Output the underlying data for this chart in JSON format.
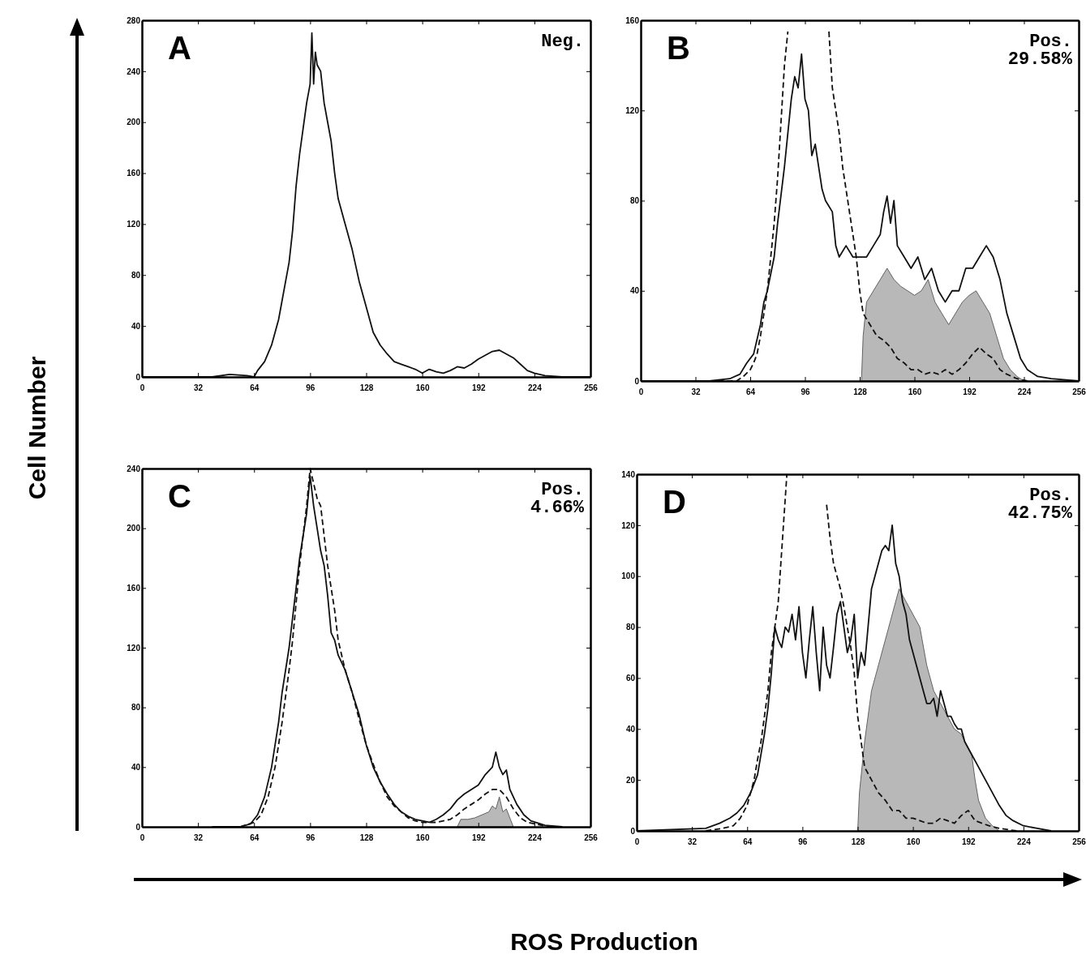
{
  "chart_data": [
    {
      "type": "line",
      "title": "A",
      "ylabel": "Cell Number",
      "annotations": [
        "Neg."
      ],
      "xlim": [
        0,
        256
      ],
      "xticks": [
        0,
        32,
        64,
        96,
        128,
        160,
        192,
        224,
        256
      ],
      "ylim": [
        0,
        280
      ],
      "yticks": [
        0,
        40,
        80,
        120,
        160,
        200,
        240,
        280
      ],
      "series": [
        {
          "color": "#111111",
          "line_style": "solid",
          "x": [
            0,
            40,
            50,
            60,
            64,
            66,
            70,
            74,
            76,
            78,
            80,
            82,
            84,
            86,
            88,
            90,
            92,
            94,
            96,
            97,
            98,
            99,
            100,
            102,
            104,
            106,
            108,
            110,
            112,
            116,
            120,
            124,
            128,
            132,
            136,
            140,
            144,
            148,
            152,
            156,
            160,
            164,
            168,
            172,
            176,
            180,
            184,
            188,
            192,
            196,
            200,
            204,
            208,
            212,
            216,
            220,
            224,
            230,
            240,
            256
          ],
          "values": [
            0,
            0,
            2,
            1,
            0,
            5,
            12,
            25,
            35,
            45,
            60,
            75,
            90,
            115,
            150,
            175,
            195,
            215,
            230,
            270,
            230,
            255,
            245,
            240,
            215,
            200,
            185,
            160,
            140,
            120,
            100,
            75,
            55,
            35,
            25,
            18,
            12,
            10,
            8,
            6,
            3,
            6,
            4,
            3,
            5,
            8,
            7,
            10,
            14,
            17,
            20,
            21,
            18,
            15,
            10,
            5,
            3,
            1,
            0,
            0
          ]
        }
      ]
    },
    {
      "type": "line",
      "title": "B",
      "annotations": [
        "Pos.",
        "29.58%"
      ],
      "xlim": [
        0,
        256
      ],
      "xticks": [
        0,
        32,
        64,
        96,
        128,
        160,
        192,
        224,
        256
      ],
      "ylim": [
        0,
        160
      ],
      "yticks": [
        0,
        40,
        80,
        120,
        160
      ],
      "series": [
        {
          "color": "#111111",
          "line_style": "solid",
          "x": [
            0,
            40,
            52,
            58,
            62,
            66,
            70,
            72,
            74,
            78,
            80,
            84,
            86,
            88,
            90,
            92,
            94,
            96,
            98,
            100,
            102,
            104,
            106,
            108,
            112,
            114,
            116,
            120,
            124,
            128,
            132,
            136,
            140,
            142,
            144,
            146,
            148,
            150,
            154,
            158,
            162,
            166,
            170,
            174,
            178,
            182,
            186,
            190,
            194,
            198,
            202,
            206,
            210,
            214,
            218,
            222,
            226,
            232,
            240,
            256
          ],
          "values": [
            0,
            0,
            1,
            3,
            8,
            12,
            25,
            35,
            40,
            55,
            70,
            95,
            110,
            125,
            135,
            130,
            145,
            125,
            120,
            100,
            105,
            95,
            85,
            80,
            75,
            60,
            55,
            60,
            55,
            55,
            55,
            60,
            65,
            75,
            82,
            70,
            80,
            60,
            55,
            50,
            55,
            45,
            50,
            40,
            35,
            40,
            40,
            50,
            50,
            55,
            60,
            55,
            45,
            30,
            20,
            10,
            5,
            2,
            1,
            0
          ]
        },
        {
          "color": "#111111",
          "line_style": "dashed",
          "x": [
            40,
            56,
            60,
            64,
            66,
            68,
            70,
            72,
            74,
            76,
            78,
            80,
            82,
            84,
            86,
            88,
            108,
            110,
            112,
            116,
            118,
            120,
            122,
            124,
            126,
            128,
            130,
            134,
            138,
            142,
            146,
            150,
            154,
            158,
            162,
            166,
            170,
            174,
            178,
            182,
            186,
            190,
            194,
            198,
            202,
            206,
            210,
            214,
            220,
            226
          ],
          "values": [
            0,
            0,
            2,
            5,
            8,
            12,
            20,
            30,
            40,
            55,
            70,
            90,
            115,
            140,
            155,
            null,
            null,
            155,
            130,
            110,
            95,
            85,
            75,
            65,
            55,
            40,
            30,
            25,
            20,
            18,
            15,
            10,
            8,
            5,
            5,
            3,
            4,
            3,
            5,
            3,
            5,
            8,
            12,
            15,
            12,
            10,
            5,
            3,
            1,
            0
          ]
        },
        {
          "type": "area",
          "color": "#b8b8b8",
          "x": [
            129,
            130,
            132,
            136,
            140,
            144,
            148,
            152,
            156,
            160,
            164,
            168,
            172,
            176,
            180,
            184,
            188,
            192,
            196,
            200,
            204,
            208,
            212,
            216,
            220,
            224
          ],
          "values": [
            0,
            20,
            35,
            40,
            45,
            50,
            45,
            42,
            40,
            38,
            40,
            45,
            35,
            30,
            25,
            30,
            35,
            38,
            40,
            35,
            30,
            20,
            10,
            5,
            2,
            0
          ]
        }
      ]
    },
    {
      "type": "line",
      "title": "C",
      "xlabel": "ROS Production",
      "annotations": [
        "Pos.",
        "4.66%"
      ],
      "xlim": [
        0,
        256
      ],
      "xticks": [
        0,
        32,
        64,
        96,
        128,
        160,
        192,
        224,
        256
      ],
      "ylim": [
        0,
        240
      ],
      "yticks": [
        0,
        40,
        80,
        120,
        160,
        200,
        240
      ],
      "series": [
        {
          "color": "#111111",
          "line_style": "solid",
          "x": [
            40,
            56,
            62,
            66,
            70,
            74,
            78,
            80,
            84,
            86,
            88,
            90,
            92,
            94,
            96,
            98,
            100,
            102,
            104,
            106,
            108,
            110,
            112,
            116,
            120,
            124,
            128,
            132,
            136,
            140,
            144,
            148,
            152,
            156,
            160,
            164,
            168,
            172,
            176,
            180,
            184,
            188,
            192,
            196,
            200,
            202,
            204,
            206,
            208,
            210,
            214,
            218,
            222,
            230,
            240
          ],
          "values": [
            0,
            0,
            2,
            8,
            20,
            40,
            70,
            90,
            120,
            140,
            160,
            180,
            195,
            210,
            235,
            215,
            200,
            185,
            175,
            155,
            130,
            125,
            115,
            105,
            90,
            75,
            55,
            40,
            30,
            22,
            15,
            10,
            7,
            5,
            4,
            3,
            5,
            8,
            12,
            18,
            22,
            25,
            28,
            35,
            40,
            50,
            40,
            35,
            38,
            25,
            15,
            8,
            4,
            1,
            0
          ]
        },
        {
          "color": "#111111",
          "line_style": "dashed",
          "x": [
            56,
            64,
            68,
            72,
            76,
            80,
            84,
            86,
            88,
            90,
            92,
            94,
            96,
            98,
            100,
            102,
            104,
            106,
            108,
            110,
            112,
            116,
            120,
            124,
            128,
            132,
            136,
            140,
            144,
            148,
            152,
            156,
            160,
            168,
            176,
            180,
            184,
            188,
            192,
            196,
            200,
            204,
            208,
            212,
            216,
            220,
            228,
            236
          ],
          "values": [
            0,
            3,
            8,
            20,
            40,
            70,
            105,
            125,
            150,
            175,
            195,
            215,
            240,
            230,
            220,
            215,
            195,
            175,
            160,
            145,
            125,
            105,
            90,
            72,
            55,
            42,
            30,
            20,
            14,
            10,
            6,
            4,
            3,
            3,
            5,
            8,
            12,
            15,
            18,
            22,
            25,
            25,
            20,
            12,
            6,
            3,
            1,
            0
          ]
        },
        {
          "type": "area",
          "color": "#b8b8b8",
          "x": [
            180,
            182,
            186,
            190,
            194,
            198,
            200,
            202,
            204,
            206,
            208,
            210,
            212
          ],
          "values": [
            0,
            5,
            5,
            6,
            8,
            10,
            14,
            12,
            20,
            10,
            12,
            6,
            0
          ]
        }
      ]
    },
    {
      "type": "line",
      "title": "D",
      "annotations": [
        "Pos.",
        "42.75%"
      ],
      "xlim": [
        0,
        256
      ],
      "xticks": [
        0,
        32,
        64,
        96,
        128,
        160,
        192,
        224,
        256
      ],
      "ylim": [
        0,
        140
      ],
      "yticks": [
        0,
        20,
        40,
        60,
        80,
        100,
        120,
        140
      ],
      "series": [
        {
          "color": "#111111",
          "line_style": "solid",
          "x": [
            0,
            40,
            48,
            54,
            58,
            62,
            66,
            70,
            72,
            74,
            76,
            78,
            80,
            82,
            84,
            86,
            88,
            90,
            92,
            94,
            96,
            98,
            100,
            102,
            104,
            106,
            108,
            110,
            112,
            114,
            116,
            118,
            120,
            122,
            124,
            126,
            128,
            130,
            132,
            134,
            136,
            138,
            140,
            142,
            144,
            146,
            148,
            150,
            152,
            154,
            156,
            158,
            160,
            162,
            164,
            166,
            168,
            170,
            172,
            174,
            176,
            178,
            180,
            182,
            184,
            186,
            188,
            190,
            194,
            198,
            202,
            206,
            210,
            214,
            218,
            224,
            232,
            240
          ],
          "values": [
            0,
            1,
            3,
            5,
            7,
            10,
            15,
            22,
            30,
            38,
            48,
            62,
            80,
            75,
            72,
            80,
            78,
            85,
            75,
            88,
            70,
            60,
            75,
            88,
            70,
            55,
            80,
            65,
            60,
            72,
            85,
            90,
            80,
            70,
            75,
            85,
            60,
            70,
            65,
            80,
            95,
            100,
            105,
            110,
            112,
            110,
            120,
            105,
            100,
            90,
            85,
            75,
            70,
            65,
            60,
            55,
            50,
            50,
            52,
            45,
            55,
            50,
            45,
            45,
            42,
            40,
            40,
            35,
            30,
            25,
            20,
            15,
            10,
            6,
            4,
            2,
            1,
            0
          ]
        },
        {
          "color": "#111111",
          "line_style": "dashed",
          "x": [
            40,
            50,
            56,
            60,
            64,
            66,
            68,
            70,
            72,
            74,
            76,
            78,
            80,
            82,
            84,
            86,
            87,
            88,
            108,
            110,
            112,
            114,
            116,
            118,
            120,
            122,
            124,
            126,
            128,
            130,
            132,
            136,
            140,
            144,
            148,
            152,
            156,
            160,
            164,
            168,
            172,
            176,
            180,
            184,
            188,
            192,
            196,
            200,
            204,
            210,
            220
          ],
          "values": [
            0,
            1,
            2,
            5,
            10,
            15,
            20,
            28,
            35,
            45,
            55,
            70,
            80,
            90,
            110,
            130,
            140,
            null,
            null,
            128,
            115,
            105,
            100,
            95,
            88,
            80,
            72,
            62,
            45,
            35,
            25,
            20,
            15,
            12,
            8,
            8,
            5,
            5,
            4,
            3,
            3,
            5,
            4,
            3,
            6,
            8,
            4,
            3,
            2,
            1,
            0
          ]
        },
        {
          "type": "area",
          "color": "#b8b8b8",
          "x": [
            128,
            129,
            132,
            136,
            140,
            144,
            148,
            152,
            156,
            160,
            164,
            168,
            172,
            176,
            180,
            184,
            188,
            190,
            194,
            196,
            198,
            202,
            206,
            210
          ],
          "values": [
            0,
            15,
            35,
            55,
            65,
            75,
            85,
            95,
            90,
            85,
            80,
            65,
            55,
            50,
            45,
            40,
            38,
            35,
            30,
            20,
            12,
            5,
            2,
            0
          ]
        }
      ]
    }
  ]
}
